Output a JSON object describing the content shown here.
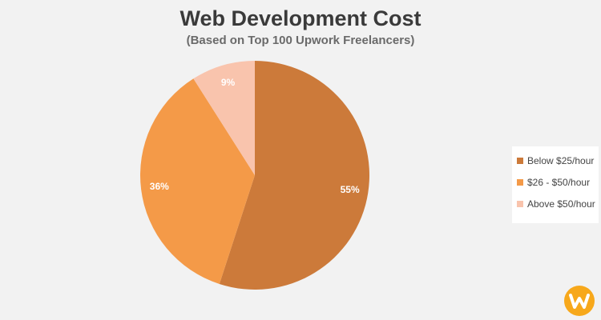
{
  "chart_data": {
    "type": "pie",
    "title": "Web Development Cost",
    "subtitle": "(Based on Top 100 Upwork Freelancers)",
    "categories": [
      "Below $25/hour",
      "$26 - $50/hour",
      "Above $50/hour"
    ],
    "values": [
      55,
      36,
      9
    ],
    "labels": [
      "55%",
      "36%",
      "9%"
    ],
    "colors": [
      "#cc7a3a",
      "#f49a48",
      "#f9c4ad"
    ],
    "legend_position": "right"
  },
  "logo": {
    "icon": "w-logo-icon",
    "color": "#f7a81b"
  }
}
